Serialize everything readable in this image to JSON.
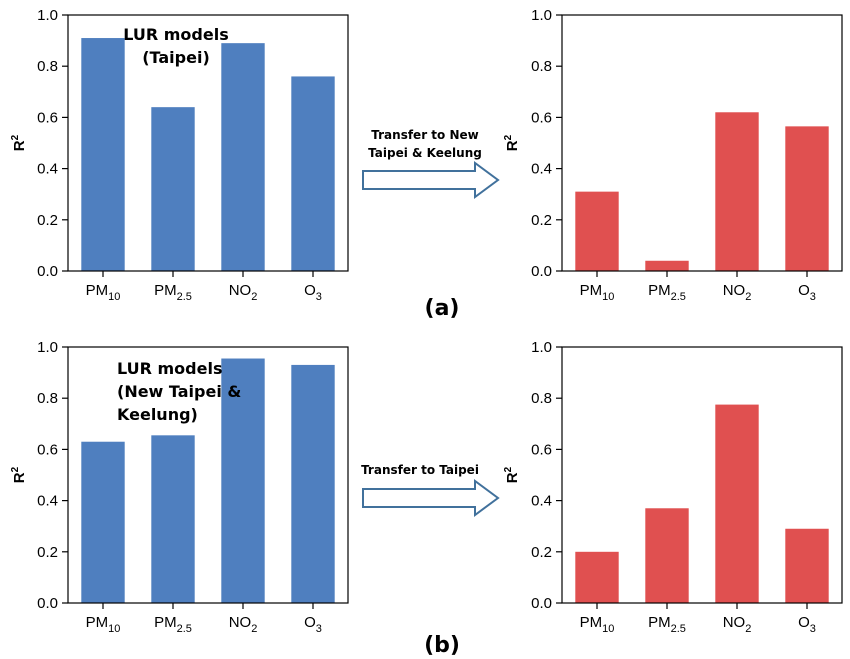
{
  "chart_data": [
    {
      "type": "bar",
      "categories": [
        "PM10",
        "PM2.5",
        "NO2",
        "O3"
      ],
      "values": [
        0.91,
        0.64,
        0.89,
        0.76
      ],
      "annotation": [
        "LUR models",
        "(Taipei)"
      ],
      "ylabel": "R2",
      "ylim": [
        0,
        1.0
      ],
      "yticks": [
        "0.0",
        "0.2",
        "0.4",
        "0.6",
        "0.8",
        "1.0"
      ],
      "color": "#4f7fbf"
    },
    {
      "type": "bar",
      "categories": [
        "PM10",
        "PM2.5",
        "NO2",
        "O3"
      ],
      "values": [
        0.31,
        0.04,
        0.62,
        0.565
      ],
      "ylabel": "R2",
      "ylim": [
        0,
        1.0
      ],
      "yticks": [
        "0.0",
        "0.2",
        "0.4",
        "0.6",
        "0.8",
        "1.0"
      ],
      "color": "#e05050"
    },
    {
      "type": "bar",
      "categories": [
        "PM10",
        "PM2.5",
        "NO2",
        "O3"
      ],
      "values": [
        0.63,
        0.655,
        0.955,
        0.93
      ],
      "annotation": [
        "LUR models",
        "(New Taipei &",
        "Keelung)"
      ],
      "ylabel": "R2",
      "ylim": [
        0,
        1.0
      ],
      "yticks": [
        "0.0",
        "0.2",
        "0.4",
        "0.6",
        "0.8",
        "1.0"
      ],
      "color": "#4f7fbf"
    },
    {
      "type": "bar",
      "categories": [
        "PM10",
        "PM2.5",
        "NO2",
        "O3"
      ],
      "values": [
        0.2,
        0.37,
        0.775,
        0.29
      ],
      "ylabel": "R2",
      "ylim": [
        0,
        1.0
      ],
      "yticks": [
        "0.0",
        "0.2",
        "0.4",
        "0.6",
        "0.8",
        "1.0"
      ],
      "color": "#e05050"
    }
  ],
  "arrows": [
    {
      "label_lines": [
        "Transfer to New",
        "Taipei & Keelung"
      ]
    },
    {
      "label_lines": [
        "Transfer to Taipei"
      ]
    }
  ],
  "panel_labels": [
    "(a)",
    "(b)"
  ]
}
